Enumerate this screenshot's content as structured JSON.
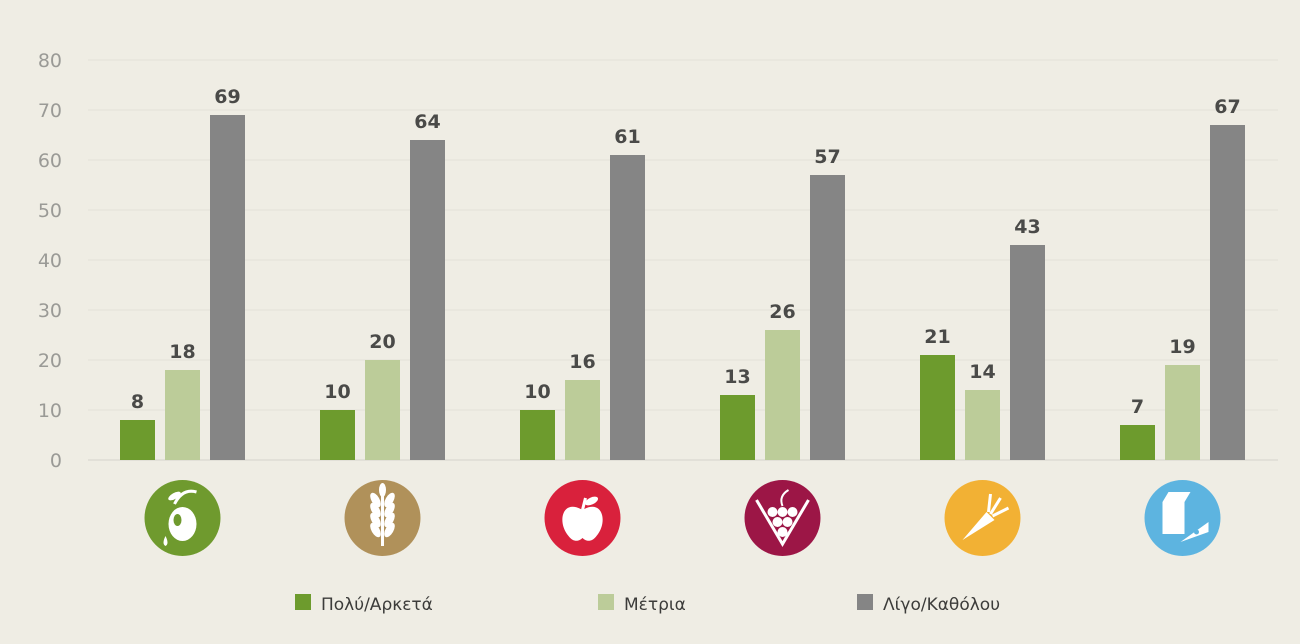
{
  "chart_data": {
    "type": "bar",
    "categories": [
      "olive-oil",
      "grains",
      "fruit",
      "wine",
      "vegetables",
      "dairy"
    ],
    "category_icons": [
      "olive-icon",
      "wheat-icon",
      "apple-icon",
      "grapes-icon",
      "carrot-icon",
      "milk-cheese-icon"
    ],
    "category_colors": [
      "#6f9a2e",
      "#b0915a",
      "#d9213c",
      "#9c1646",
      "#f2b134",
      "#5db4e0"
    ],
    "series": [
      {
        "name": "Πολύ/Αρκετά",
        "color": "#6d9b2d",
        "values": [
          8,
          10,
          10,
          13,
          21,
          7
        ]
      },
      {
        "name": "Μέτρια",
        "color": "#bccc99",
        "values": [
          18,
          20,
          16,
          26,
          14,
          19
        ]
      },
      {
        "name": "Λίγο/Καθόλου",
        "color": "#858585",
        "values": [
          69,
          64,
          61,
          57,
          43,
          67
        ]
      }
    ],
    "yticks": [
      "0",
      "10",
      "20",
      "30",
      "40",
      "50",
      "60",
      "70",
      "80"
    ],
    "ylim": [
      0,
      80
    ],
    "grid": true,
    "legend_position": "bottom"
  }
}
